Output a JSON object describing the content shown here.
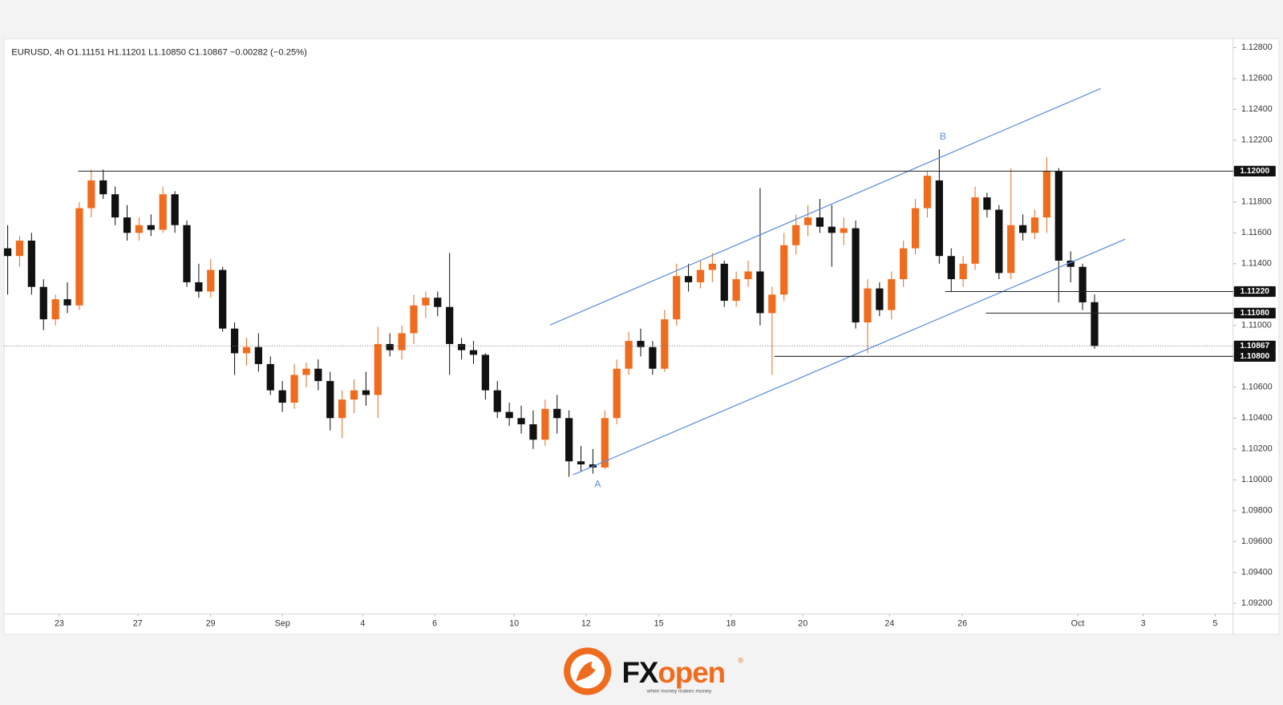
{
  "chart_data": {
    "type": "candlestick",
    "title": "EURUSD, 4h  O1.11151  H1.11201  L1.10850  C1.10867  −0.00282 (−0.25%)",
    "open": [
      1.115,
      1.1145,
      1.1155,
      1.1125,
      1.1104,
      1.1117,
      1.1113,
      1.1176,
      1.1194,
      1.1185,
      1.117,
      1.116,
      1.1165,
      1.1162,
      1.1185,
      1.1165,
      1.1128,
      1.1122,
      1.1136,
      1.1098,
      1.1082,
      1.1086,
      1.1075,
      1.1058,
      1.105,
      1.1068,
      1.1072,
      1.1064,
      1.104,
      1.1052,
      1.1058,
      1.1055,
      1.1088,
      1.1084,
      1.1095,
      1.1113,
      1.1118,
      1.1112,
      1.1088,
      1.1084,
      1.1081,
      1.1058,
      1.1044,
      1.104,
      1.1036,
      1.1026,
      1.1046,
      1.104,
      1.1012,
      1.101,
      1.1008,
      1.104,
      1.1072,
      1.109,
      1.1086,
      1.1072,
      1.1104,
      1.1132,
      1.1128,
      1.1136,
      1.114,
      1.1116,
      1.113,
      1.1135,
      1.1108,
      1.112,
      1.1152,
      1.1165,
      1.117,
      1.1164,
      1.116,
      1.1163,
      1.1102,
      1.1124,
      1.111,
      1.113,
      1.115,
      1.1176,
      1.1194,
      1.1145,
      1.113,
      1.114,
      1.1183,
      1.1175,
      1.1134,
      1.1165,
      1.116,
      1.117,
      1.12,
      1.1142,
      1.1138,
      1.11151
    ],
    "high": [
      1.1165,
      1.1158,
      1.116,
      1.113,
      1.112,
      1.1128,
      1.118,
      1.1201,
      1.1201,
      1.119,
      1.1178,
      1.117,
      1.1172,
      1.119,
      1.1187,
      1.1168,
      1.114,
      1.1143,
      1.1138,
      1.1102,
      1.1092,
      1.1095,
      1.108,
      1.1064,
      1.1075,
      1.1076,
      1.1078,
      1.107,
      1.1058,
      1.1065,
      1.107,
      1.1099,
      1.1095,
      1.11,
      1.112,
      1.1122,
      1.1122,
      1.1147,
      1.1092,
      1.109,
      1.1082,
      1.1064,
      1.105,
      1.1048,
      1.1045,
      1.1052,
      1.1055,
      1.1045,
      1.1022,
      1.102,
      1.1045,
      1.1078,
      1.1096,
      1.1098,
      1.109,
      1.111,
      1.114,
      1.114,
      1.1142,
      1.1147,
      1.1142,
      1.1135,
      1.1142,
      1.1189,
      1.1125,
      1.116,
      1.1172,
      1.1178,
      1.1182,
      1.1178,
      1.117,
      1.1168,
      1.113,
      1.1128,
      1.1135,
      1.1155,
      1.1182,
      1.12,
      1.1214,
      1.115,
      1.1145,
      1.119,
      1.1186,
      1.1178,
      1.1202,
      1.1172,
      1.1175,
      1.1209,
      1.1202,
      1.1148,
      1.114,
      1.11201
    ],
    "low": [
      1.112,
      1.1138,
      1.112,
      1.1097,
      1.11,
      1.1108,
      1.111,
      1.117,
      1.1182,
      1.1165,
      1.1155,
      1.1155,
      1.1158,
      1.116,
      1.116,
      1.1125,
      1.1118,
      1.1118,
      1.1096,
      1.1068,
      1.1074,
      1.107,
      1.1055,
      1.1044,
      1.1046,
      1.106,
      1.1058,
      1.1032,
      1.1027,
      1.1043,
      1.1048,
      1.104,
      1.108,
      1.1078,
      1.1088,
      1.1105,
      1.1106,
      1.1068,
      1.1078,
      1.1075,
      1.1052,
      1.104,
      1.1035,
      1.103,
      1.102,
      1.1022,
      1.103,
      1.1002,
      1.1005,
      1.1004,
      1.1007,
      1.1036,
      1.1068,
      1.108,
      1.1068,
      1.107,
      1.11,
      1.1122,
      1.1124,
      1.1128,
      1.1112,
      1.1112,
      1.1125,
      1.11,
      1.1068,
      1.1116,
      1.1146,
      1.1158,
      1.116,
      1.1138,
      1.1152,
      1.1098,
      1.1082,
      1.1106,
      1.1104,
      1.1125,
      1.1146,
      1.117,
      1.114,
      1.1122,
      1.1125,
      1.1136,
      1.117,
      1.113,
      1.113,
      1.1155,
      1.1156,
      1.116,
      1.1115,
      1.1128,
      1.111,
      1.1085
    ],
    "close": [
      1.1145,
      1.1155,
      1.1125,
      1.1104,
      1.1117,
      1.1113,
      1.1176,
      1.1194,
      1.1185,
      1.117,
      1.116,
      1.1165,
      1.1162,
      1.1185,
      1.1165,
      1.1128,
      1.1122,
      1.1136,
      1.1098,
      1.1082,
      1.1086,
      1.1075,
      1.1058,
      1.105,
      1.1068,
      1.1072,
      1.1064,
      1.104,
      1.1052,
      1.1058,
      1.1055,
      1.1088,
      1.1084,
      1.1095,
      1.1113,
      1.1118,
      1.1112,
      1.1088,
      1.1084,
      1.1081,
      1.1058,
      1.1044,
      1.104,
      1.1036,
      1.1026,
      1.1046,
      1.104,
      1.1012,
      1.101,
      1.1008,
      1.104,
      1.1072,
      1.109,
      1.1086,
      1.1072,
      1.1104,
      1.1132,
      1.1128,
      1.1136,
      1.114,
      1.1116,
      1.113,
      1.1135,
      1.1108,
      1.112,
      1.1152,
      1.1165,
      1.117,
      1.1164,
      1.116,
      1.1163,
      1.1102,
      1.1124,
      1.111,
      1.113,
      1.115,
      1.1176,
      1.1197,
      1.1145,
      1.113,
      1.114,
      1.1183,
      1.1175,
      1.1134,
      1.1165,
      1.116,
      1.117,
      1.12,
      1.1142,
      1.1138,
      1.1115,
      1.10867
    ],
    "up_color": "#ef6c1f",
    "down_color": "#111111",
    "xlim": [
      -0.3,
      102.6
    ],
    "xticks": [
      {
        "value": 4.32,
        "label": "23"
      },
      {
        "value": 10.89,
        "label": "27"
      },
      {
        "value": 16.99,
        "label": "29"
      },
      {
        "value": 23.01,
        "label": "Sep"
      },
      {
        "value": 29.73,
        "label": "4"
      },
      {
        "value": 35.75,
        "label": "6"
      },
      {
        "value": 42.4,
        "label": "10"
      },
      {
        "value": 48.42,
        "label": "12"
      },
      {
        "value": 54.52,
        "label": "15"
      },
      {
        "value": 60.55,
        "label": "18"
      },
      {
        "value": 66.58,
        "label": "20"
      },
      {
        "value": 73.84,
        "label": "24"
      },
      {
        "value": 79.93,
        "label": "26"
      },
      {
        "value": 89.59,
        "label": "Oct"
      },
      {
        "value": 95.07,
        "label": "3"
      },
      {
        "value": 101.1,
        "label": "5"
      }
    ],
    "ylim": [
      1.09131,
      1.12853
    ],
    "yticks": [
      {
        "value": 1.128,
        "label": "1.12800"
      },
      {
        "value": 1.126,
        "label": "1.12600"
      },
      {
        "value": 1.124,
        "label": "1.12400"
      },
      {
        "value": 1.122,
        "label": "1.12200"
      },
      {
        "value": 1.12,
        "label": "1.12000"
      },
      {
        "value": 1.118,
        "label": "1.11800"
      },
      {
        "value": 1.116,
        "label": "1.11600"
      },
      {
        "value": 1.114,
        "label": "1.11400"
      },
      {
        "value": 1.112,
        "label": "1.11200"
      },
      {
        "value": 1.11,
        "label": "1.11000"
      },
      {
        "value": 1.108,
        "label": "1.10800"
      },
      {
        "value": 1.106,
        "label": "1.10600"
      },
      {
        "value": 1.104,
        "label": "1.10400"
      },
      {
        "value": 1.102,
        "label": "1.10200"
      },
      {
        "value": 1.1,
        "label": "1.10000"
      },
      {
        "value": 1.098,
        "label": "1.09800"
      },
      {
        "value": 1.096,
        "label": "1.09600"
      },
      {
        "value": 1.094,
        "label": "1.09400"
      },
      {
        "value": 1.092,
        "label": "1.09200"
      }
    ],
    "grid": false,
    "levels": [
      {
        "value": 1.12,
        "label": "1.12000",
        "from": 5.9,
        "style": "solid"
      },
      {
        "value": 1.1122,
        "label": "1.11220",
        "from": 78.5,
        "style": "solid"
      },
      {
        "value": 1.1108,
        "label": "1.11080",
        "from": 81.9,
        "style": "solid"
      },
      {
        "value": 1.10867,
        "label": "1.10867",
        "from": -0.3,
        "style": "dotted"
      },
      {
        "value": 1.108,
        "label": "1.10800",
        "from": 64.2,
        "style": "solid"
      }
    ],
    "channel_color": "#5b8dd9",
    "channels": [
      {
        "x": [
          45.41,
          91.51
        ],
        "y": [
          1.11003,
          1.12535
        ]
      },
      {
        "x": [
          47.33,
          93.56
        ],
        "y": [
          1.10032,
          1.11559
        ]
      }
    ],
    "annotations": [
      {
        "text": "A",
        "x": 49.4,
        "y": 1.0997
      },
      {
        "text": "B",
        "x": 78.3,
        "y": 1.1222
      }
    ]
  },
  "logo": {
    "brand_a": "FX",
    "brand_b": "open",
    "mark": "®",
    "tagline": "when money makes money"
  }
}
